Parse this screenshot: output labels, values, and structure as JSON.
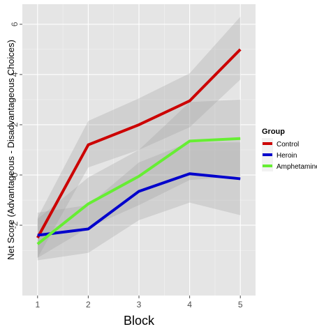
{
  "chart_data": {
    "type": "line",
    "xlabel": "Block",
    "ylabel": "Net Score (Advantageous - Disadvantageous Choices)",
    "x": [
      1,
      2,
      3,
      4,
      5
    ],
    "xlim": [
      0.7,
      5.3
    ],
    "ylim": [
      -4.8,
      6.8
    ],
    "x_ticks": [
      "1",
      "2",
      "3",
      "4",
      "5"
    ],
    "y_ticks": [
      -2,
      0,
      2,
      4,
      6
    ],
    "y_tick_labels": [
      "-2",
      "0",
      "2",
      "4",
      "6"
    ],
    "grid": true,
    "legend": {
      "title": "Group",
      "placement": "right"
    },
    "series": [
      {
        "name": "Control",
        "color": "#cc0000",
        "values": [
          -2.5,
          1.2,
          2.0,
          2.95,
          5.0
        ],
        "ci_lower": [
          -3.3,
          0.3,
          1.0,
          1.9,
          3.8
        ],
        "ci_upper": [
          -1.7,
          2.15,
          3.05,
          4.05,
          6.3
        ]
      },
      {
        "name": "Heroin",
        "color": "#0000cc",
        "values": [
          -2.4,
          -2.15,
          -0.65,
          0.05,
          -0.15
        ],
        "ci_lower": [
          -3.4,
          -3.1,
          -1.8,
          -1.1,
          -1.6
        ],
        "ci_upper": [
          -1.5,
          -1.2,
          0.5,
          1.3,
          1.3
        ]
      },
      {
        "name": "Amphetamine",
        "color": "#66ee33",
        "values": [
          -2.75,
          -1.15,
          -0.05,
          1.35,
          1.45
        ],
        "ci_lower": [
          -3.3,
          -2.1,
          -1.2,
          -0.2,
          -0.05
        ],
        "ci_upper": [
          -1.75,
          -0.1,
          1.0,
          2.9,
          3.0
        ]
      }
    ]
  }
}
